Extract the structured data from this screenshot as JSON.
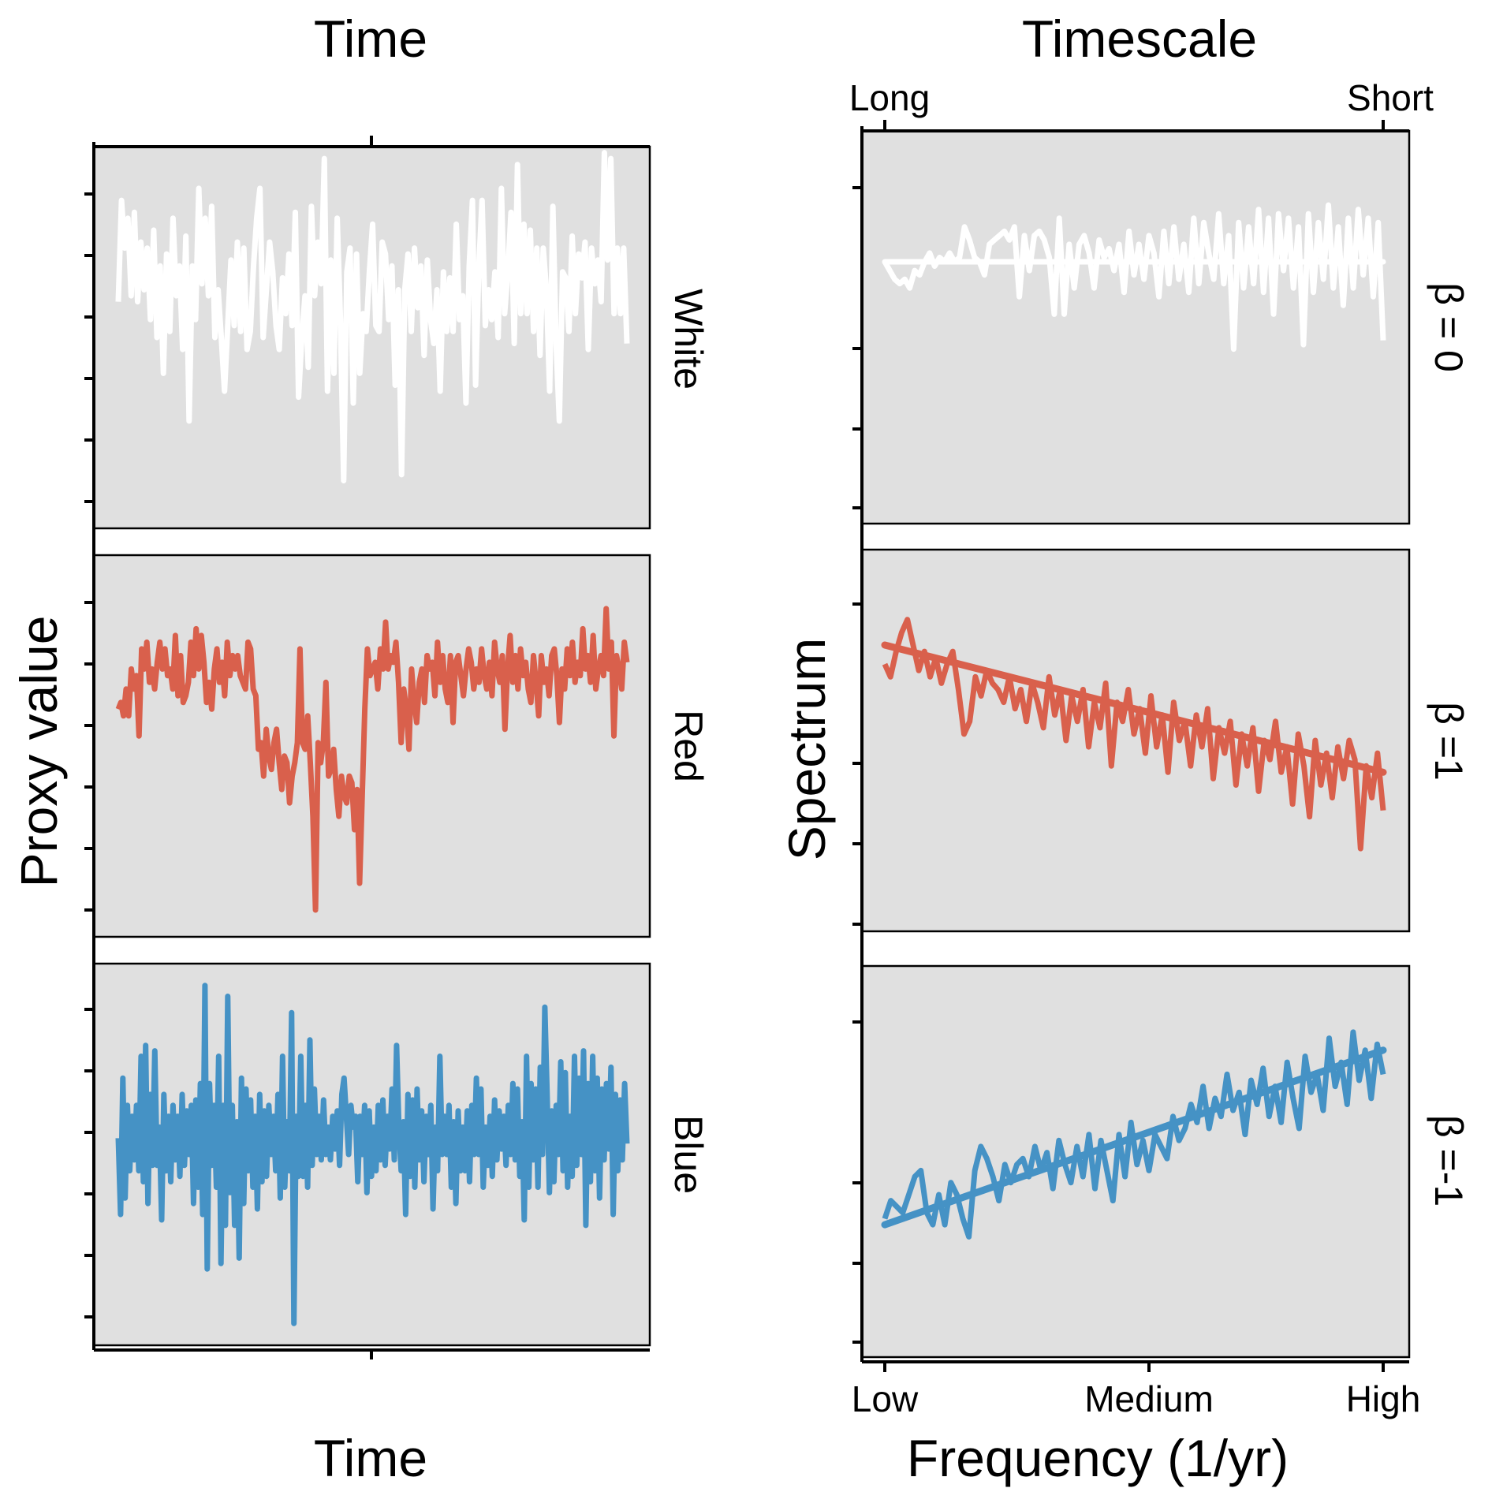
{
  "colors": {
    "white": "#ffffff",
    "red": "#d9604c",
    "blue": "#4592c5",
    "panel": "#e0e0e0"
  },
  "left": {
    "top_title": "Time",
    "bottom_title": "Time",
    "ylabel": "Proxy value",
    "facets": [
      "White",
      "Red",
      "Blue"
    ]
  },
  "right": {
    "top_title": "Timescale",
    "top_ticks": [
      "Long",
      "Short"
    ],
    "bottom_ticks": [
      "Low",
      "Medium",
      "High"
    ],
    "xlabel": "Frequency (1/yr)",
    "ylabel": "Spectrum",
    "facets": [
      "β = 0",
      "β =1",
      "β =-1"
    ]
  },
  "chart_data": [
    {
      "type": "line",
      "name": "Time series (left column)",
      "xlabel": "Time",
      "ylabel": "Proxy value",
      "panels": [
        {
          "facet": "White",
          "color": "#ffffff",
          "ylim": [
            -3.8,
            2.6
          ],
          "values": [
            0,
            1.7,
            0.9,
            1.4,
            0.1,
            1.5,
            0.0,
            1.0,
            0.2,
            0.9,
            -0.3,
            1.2,
            -0.6,
            0.6,
            -1.2,
            0.8,
            -0.5,
            1.4,
            0.1,
            0.6,
            -0.8,
            1.1,
            -2.0,
            0.6,
            -0.3,
            1.9,
            0.3,
            1.4,
            0.1,
            1.6,
            -0.6,
            0.2,
            -0.6,
            -1.5,
            -0.4,
            0.7,
            -0.4,
            1.0,
            -0.5,
            0.9,
            -0.8,
            -0.5,
            0.6,
            1.4,
            1.9,
            -0.6,
            0.2,
            1.0,
            0.5,
            -0.4,
            -0.8,
            0.4,
            -0.2,
            0.8,
            -0.4,
            1.5,
            -1.6,
            -0.6,
            0.1,
            -1.1,
            1.6,
            0.1,
            1.0,
            0.3,
            2.4,
            -1.5,
            0.7,
            -1.2,
            1.4,
            -0.3,
            -3.0,
            0.5,
            0.9,
            -1.7,
            0.8,
            -1.2,
            -0.2,
            -0.5,
            0.5,
            1.3,
            -0.4,
            -0.5,
            1.0,
            0.8,
            -0.3,
            0.6,
            -1.4,
            0.2,
            -2.9,
            0.2,
            0.8,
            -0.5,
            0.9,
            -0.1,
            0.6,
            -0.9,
            0.7,
            -0.3,
            -0.7,
            0.2,
            -1.5,
            0.5,
            -0.5,
            0.4,
            -0.5,
            1.3,
            -0.3,
            0.1,
            -1.7,
            0.6,
            1.7,
            -1.4,
            0.6,
            1.7,
            -0.4,
            0.2,
            -0.3,
            0.5,
            -0.6,
            1.9,
            -0.2,
            0.5,
            1.5,
            -0.7,
            2.3,
            -0.2,
            1.3,
            -0.2,
            1.2,
            -0.5,
            0.9,
            -0.9,
            0.9,
            0.2,
            -1.5,
            1.6,
            -0.7,
            -2.0,
            0.5,
            0.4,
            -0.5,
            1.1,
            -0.2,
            0.8,
            0.4,
            1.0,
            -0.8,
            0.9,
            0.3,
            0.7,
            0.0,
            2.5,
            0.7,
            2.4,
            -0.2,
            0.9,
            -0.2,
            0.9,
            -0.7
          ]
        },
        {
          "facet": "Red",
          "color": "#d9604c",
          "ylim": [
            -3.4,
            2.3
          ],
          "values": [
            0,
            0.1,
            -0.1,
            0.3,
            -0.1,
            0.6,
            0.3,
            0.5,
            -0.4,
            0.9,
            0.6,
            1.0,
            0.4,
            0.6,
            0.3,
            0.7,
            1.0,
            0.6,
            0.9,
            0.5,
            0.6,
            0.3,
            1.1,
            0.2,
            0.8,
            0.1,
            0.2,
            0.4,
            1.0,
            0.5,
            1.2,
            0.6,
            1.1,
            0.7,
            0.1,
            0.4,
            0.0,
            0.6,
            0.9,
            0.4,
            0.7,
            0.2,
            1.0,
            0.5,
            0.8,
            0.6,
            0.8,
            0.5,
            0.4,
            0.3,
            1.0,
            0.9,
            0.3,
            0.2,
            -0.6,
            -0.5,
            -1.0,
            -0.3,
            -0.7,
            -0.9,
            -0.5,
            -0.3,
            -0.8,
            -1.2,
            -0.7,
            -0.8,
            -1.4,
            -1.0,
            -0.8,
            -0.5,
            0.9,
            -0.5,
            -0.6,
            -0.1,
            -0.8,
            -1.6,
            -3.0,
            -0.5,
            -0.8,
            -0.5,
            0.4,
            -1.0,
            -0.9,
            -0.6,
            -1.2,
            -1.6,
            -1.0,
            -1.3,
            -1.4,
            -1.0,
            -1.1,
            -1.8,
            -1.2,
            -2.6,
            -1.3,
            0.0,
            0.9,
            0.5,
            0.6,
            0.7,
            0.3,
            0.9,
            0.6,
            1.3,
            0.6,
            0.8,
            0.7,
            1.0,
            0.4,
            -0.5,
            0.3,
            0.0,
            -0.6,
            0.6,
            0.1,
            -0.2,
            0.4,
            0.6,
            0.1,
            0.8,
            0.6,
            0.7,
            0.2,
            1.0,
            0.4,
            0.8,
            0.3,
            0.1,
            0.8,
            -0.2,
            0.7,
            0.8,
            0.5,
            0.2,
            0.6,
            0.9,
            0.7,
            0.3,
            0.6,
            0.4,
            0.9,
            0.5,
            0.3,
            0.7,
            0.2,
            1.0,
            0.6,
            0.4,
            0.8,
            -0.3,
            0.6,
            1.1,
            0.4,
            0.8,
            0.3,
            0.9,
            0.5,
            0.7,
            0.3,
            0.1,
            0.8,
            0.4,
            -0.1,
            0.8,
            0.4,
            0.6,
            0.2,
            0.8,
            0.9,
            0.5,
            -0.2,
            0.6,
            0.3,
            0.9,
            0.5,
            1.0,
            0.4,
            0.7,
            0.5,
            1.2,
            0.6,
            0.8,
            0.4,
            1.1,
            0.3,
            0.6,
            0.8,
            0.5,
            1.5,
            0.6,
            1.0,
            -0.4,
            0.8,
            0.6,
            0.3,
            1.0,
            0.7
          ]
        },
        {
          "facet": "Blue",
          "color": "#4592c5",
          "ylim": [
            -3.8,
            3.2
          ],
          "values": [
            0,
            -1.4,
            1.1,
            -1.1,
            0.6,
            -0.6,
            0.4,
            -0.4,
            0.6,
            -0.6,
            1.5,
            -0.8,
            1.7,
            -1.2,
            0.8,
            -0.5,
            1.6,
            -0.5,
            0.2,
            -1.5,
            0.8,
            -0.6,
            0.4,
            -0.8,
            0.6,
            -0.4,
            0.4,
            -0.7,
            0.8,
            -0.5,
            0.5,
            -0.3,
            0.6,
            -1.2,
            0.7,
            -0.9,
            1.0,
            -1.4,
            2.8,
            -2.4,
            1.0,
            -0.5,
            0.6,
            -0.9,
            1.5,
            -2.3,
            0.6,
            -1.6,
            2.6,
            -1.0,
            0.6,
            -1.6,
            0.3,
            -2.2,
            1.1,
            -1.2,
            0.9,
            -0.6,
            0.7,
            -0.9,
            0.4,
            -1.3,
            0.8,
            -0.8,
            0.5,
            -0.7,
            0.6,
            -0.3,
            0.4,
            -0.6,
            0.8,
            -1.1,
            1.5,
            -0.9,
            0.3,
            -0.6,
            2.3,
            -3.4,
            0.4,
            -0.7,
            1.5,
            -0.7,
            0.6,
            -0.9,
            1.8,
            -0.5,
            0.9,
            -0.3,
            0.4,
            -0.4,
            0.7,
            -0.3,
            0.2,
            -0.4,
            0.4,
            -0.2,
            0.5,
            -0.5,
            0.8,
            1.1,
            0.4,
            -0.3,
            0.6,
            0.2,
            0.4,
            -0.8,
            0.4,
            -0.3,
            0.6,
            -1.0,
            0.5,
            -0.7,
            0.2,
            -0.6,
            0.6,
            -0.4,
            0.7,
            -0.5,
            0.4,
            -0.2,
            0.9,
            -0.4,
            1.7,
            0.2,
            -0.6,
            0.3,
            -1.4,
            0.8,
            -0.7,
            0.7,
            -0.9,
            0.9,
            -0.4,
            0.5,
            -0.8,
            0.4,
            -0.3,
            0.6,
            -1.3,
            0.2,
            -0.6,
            1.5,
            -0.3,
            0.4,
            -0.3,
            0.6,
            -0.9,
            0.3,
            -1.2,
            0.5,
            -0.6,
            0.2,
            -0.6,
            0.5,
            -0.8,
            0.6,
            -0.3,
            1.1,
            -0.3,
            0.9,
            -0.9,
            0.2,
            -0.5,
            0.4,
            -0.7,
            0.7,
            -0.4,
            0.5,
            -0.2,
            0.4,
            -0.5,
            0.6,
            -0.3,
            1.0,
            -0.4,
            0.9,
            -0.7,
            0.3,
            -1.5,
            1.5,
            -0.9,
            1.0,
            -0.4,
            0.9,
            -0.9,
            1.3,
            -0.3,
            2.4,
            0.8,
            -1.0,
            0.5,
            -0.8,
            0.6,
            -0.3,
            1.4,
            -0.6,
            1.2,
            -0.9,
            0.4,
            -0.7,
            1.5,
            -0.5,
            1.1,
            -0.3,
            1.6,
            -1.6,
            1.0,
            -0.8,
            1.5,
            -0.6,
            1.1,
            -1.1,
            0.9,
            -0.4,
            1.0,
            -0.2,
            1.3,
            -1.4,
            0.8,
            -0.6,
            0.7,
            -0.4,
            1.0,
            -0.1
          ]
        }
      ]
    },
    {
      "type": "line",
      "name": "Power spectra (right column)",
      "xlabel": "Frequency (1/yr)",
      "ylabel": "Spectrum",
      "x_ticks": [
        "Low",
        "Medium",
        "High"
      ],
      "top_x_ticks": [
        "Long",
        "Short"
      ],
      "xlim": [
        0,
        1
      ],
      "panels": [
        {
          "facet": "β = 0",
          "color": "#ffffff",
          "beta": 0,
          "ylim": [
            -6,
            3
          ],
          "fit_line": [
            [
              0,
              0
            ],
            [
              1,
              0
            ]
          ],
          "values": [
            0,
            -0.2,
            -0.4,
            -0.5,
            -0.4,
            -0.6,
            -0.2,
            -0.3,
            0.0,
            0.2,
            -0.1,
            0.1,
            0.0,
            0.2,
            0.0,
            0.1,
            0.8,
            0.5,
            0.1,
            0.0,
            -0.3,
            0.4,
            0.5,
            0.6,
            0.7,
            0.5,
            0.8,
            -0.8,
            0.6,
            -0.2,
            0.6,
            0.7,
            0.5,
            0.1,
            -1.2,
            1.0,
            -1.2,
            0.4,
            -0.6,
            0.4,
            0.6,
            0.2,
            -0.6,
            0.5,
            0.1,
            0.3,
            -0.2,
            0.4,
            -0.7,
            0.7,
            -0.3,
            0.4,
            -0.4,
            0.6,
            0.2,
            -0.8,
            0.7,
            -0.5,
            0.8,
            -0.4,
            0.4,
            -0.7,
            1.0,
            -0.5,
            0.9,
            0.2,
            -0.4,
            1.1,
            -0.5,
            0.6,
            -2.0,
            0.9,
            -0.6,
            0.8,
            -0.5,
            1.2,
            -0.7,
            1.0,
            -1.2,
            1.1,
            -0.2,
            1.0,
            -0.6,
            0.8,
            -1.9,
            1.1,
            -0.7,
            0.9,
            -0.4,
            1.3,
            -0.6,
            0.8,
            -1.0,
            1.0,
            -0.6,
            1.2,
            -0.3,
            1.0,
            -0.8,
            0.9,
            -1.8
          ]
        },
        {
          "facet": "β =1",
          "color": "#d9604c",
          "beta": 1,
          "ylim": [
            -3.5,
            2.5
          ],
          "fit_line": [
            [
              0,
              1.0
            ],
            [
              1,
              -1.0
            ]
          ],
          "values": [
            0.7,
            0.5,
            0.9,
            1.2,
            1.4,
            1.0,
            0.6,
            0.9,
            0.5,
            0.8,
            0.4,
            0.7,
            0.9,
            0.3,
            -0.4,
            -0.2,
            0.5,
            0.2,
            0.6,
            0.4,
            0.3,
            0.1,
            0.5,
            0.0,
            0.3,
            -0.2,
            0.4,
            0.1,
            -0.3,
            0.5,
            -0.1,
            0.3,
            -0.5,
            0.2,
            -0.2,
            0.3,
            -0.6,
            0.1,
            -0.3,
            0.4,
            -0.9,
            0.1,
            -0.2,
            0.3,
            -0.4,
            0.0,
            -0.7,
            0.2,
            -0.6,
            -0.1,
            -1.0,
            0.1,
            -0.5,
            -0.2,
            -0.9,
            -0.1,
            -0.6,
            0.0,
            -1.1,
            -0.3,
            -0.7,
            -0.2,
            -1.2,
            -0.4,
            -0.9,
            -0.3,
            -1.3,
            -0.5,
            -0.8,
            -0.2,
            -1.0,
            -0.6,
            -1.5,
            -0.4,
            -0.9,
            -1.7,
            -0.5,
            -1.2,
            -0.7,
            -1.4,
            -0.6,
            -1.1,
            -0.5,
            -0.8,
            -2.2,
            -0.9,
            -1.4,
            -0.7,
            -1.6
          ]
        },
        {
          "facet": "β =-1",
          "color": "#4592c5",
          "beta": -1,
          "ylim": [
            -3.5,
            3.0
          ],
          "fit_line": [
            [
              0,
              -1.3
            ],
            [
              1,
              1.6
            ]
          ],
          "values": [
            -1.2,
            -0.9,
            -1.0,
            -1.1,
            -0.8,
            -0.5,
            -0.4,
            -1.1,
            -1.3,
            -0.8,
            -1.3,
            -0.6,
            -0.8,
            -1.2,
            -1.5,
            -0.4,
            0.0,
            -0.2,
            -0.5,
            -0.9,
            -0.3,
            -0.6,
            -0.3,
            -0.2,
            -0.5,
            0.0,
            -0.4,
            -0.1,
            -0.7,
            0.1,
            -0.3,
            -0.6,
            0.0,
            -0.5,
            0.2,
            -0.7,
            0.1,
            -0.4,
            -0.9,
            0.2,
            -0.5,
            0.4,
            -0.3,
            0.1,
            -0.4,
            0.2,
            0.0,
            -0.2,
            0.5,
            0.1,
            0.3,
            0.7,
            0.4,
            1.0,
            0.3,
            0.8,
            0.5,
            1.2,
            0.6,
            0.9,
            0.2,
            1.1,
            0.7,
            1.3,
            0.5,
            1.0,
            0.4,
            1.4,
            0.8,
            0.3,
            1.5,
            0.9,
            1.2,
            0.6,
            1.8,
            1.0,
            1.4,
            0.7,
            1.9,
            1.1,
            1.6,
            0.8,
            1.7,
            1.2
          ]
        }
      ]
    }
  ]
}
